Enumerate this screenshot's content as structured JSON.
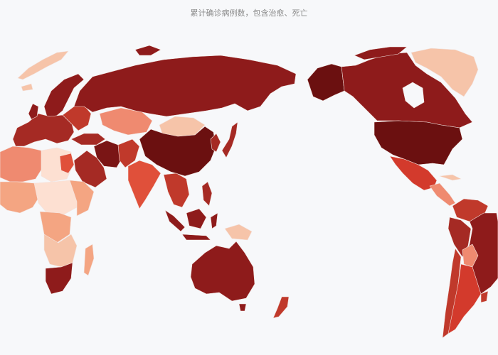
{
  "title": "累计确诊病例数，包含治愈、死亡"
}
